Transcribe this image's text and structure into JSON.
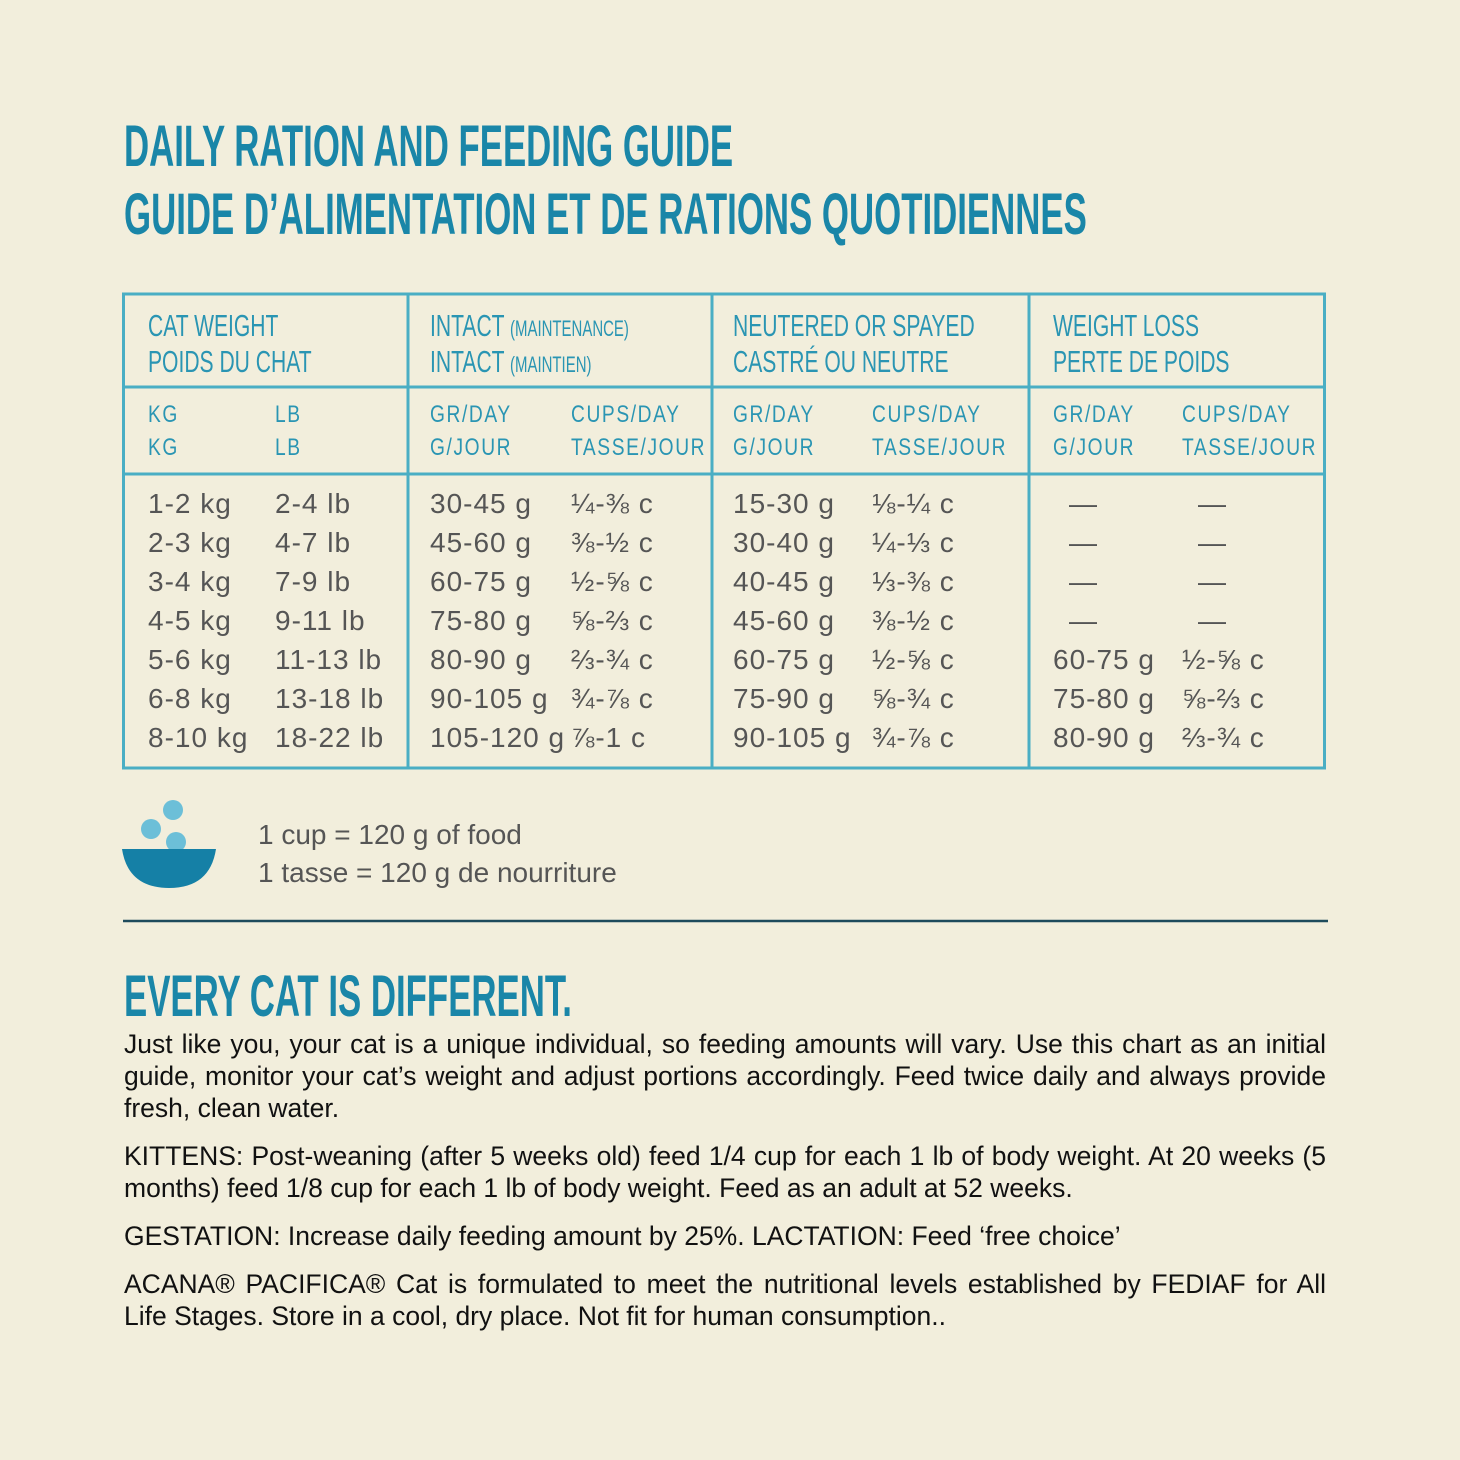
{
  "header": {
    "title_en": "DAILY RATION AND FEEDING GUIDE",
    "title_fr": "GUIDE D’ALIMENTATION ET DE RATIONS QUOTIDIENNES"
  },
  "table": {
    "groups": [
      {
        "en": "CAT WEIGHT",
        "fr": "POIDS DU CHAT"
      },
      {
        "en": "INTACT",
        "en_note": "(MAINTENANCE)",
        "fr": "INTACT",
        "fr_note": "(MAINTIEN)"
      },
      {
        "en": "NEUTERED OR SPAYED",
        "fr": "CASTRÉ OU NEUTRE"
      },
      {
        "en": "WEIGHT LOSS",
        "fr": "PERTE DE POIDS"
      }
    ],
    "subheaders": [
      {
        "en": "KG",
        "fr": "KG"
      },
      {
        "en": "LB",
        "fr": "LB"
      },
      {
        "en": "GR/DAY",
        "fr": "G/JOUR"
      },
      {
        "en": "CUPS/DAY",
        "fr": "TASSE/JOUR"
      },
      {
        "en": "GR/DAY",
        "fr": "G/JOUR"
      },
      {
        "en": "CUPS/DAY",
        "fr": "TASSE/JOUR"
      },
      {
        "en": "GR/DAY",
        "fr": "G/JOUR"
      },
      {
        "en": "CUPS/DAY",
        "fr": "TASSE/JOUR"
      }
    ],
    "rows": [
      [
        "1-2 kg",
        "2-4 lb",
        "30-45 g",
        "¼-⅜ c",
        "15-30 g",
        "⅛-¼ c",
        "—",
        "—"
      ],
      [
        "2-3 kg",
        "4-7 lb",
        "45-60 g",
        "⅜-½ c",
        "30-40 g",
        "¼-⅓ c",
        "—",
        "—"
      ],
      [
        "3-4 kg",
        "7-9 lb",
        "60-75 g",
        "½-⅝ c",
        "40-45 g",
        "⅓-⅜ c",
        "—",
        "—"
      ],
      [
        "4-5 kg",
        "9-11 lb",
        "75-80 g",
        "⅝-⅔ c",
        "45-60 g",
        "⅜-½ c",
        "—",
        "—"
      ],
      [
        "5-6 kg",
        "11-13 lb",
        "80-90 g",
        "⅔-¾ c",
        "60-75 g",
        "½-⅝ c",
        "60-75 g",
        "½-⅝ c"
      ],
      [
        "6-8 kg",
        "13-18 lb",
        "90-105 g",
        "¾-⅞ c",
        "75-90 g",
        "⅝-¾ c",
        "75-80 g",
        "⅝-⅔ c"
      ],
      [
        "8-10 kg",
        "18-22 lb",
        "105-120 g",
        "⅞-1 c",
        "90-105 g",
        "¾-⅞ c",
        "80-90 g",
        "⅔-¾ c"
      ]
    ]
  },
  "note": {
    "en": "1 cup = 120 g of food",
    "fr": "1 tasse = 120 g de nourriture"
  },
  "section": {
    "heading": "EVERY CAT IS DIFFERENT.",
    "paragraphs": [
      "Just like you, your cat is a unique individual, so feeding amounts will vary. Use this chart as an initial guide, monitor your cat’s weight and adjust portions accordingly. Feed twice daily and always provide fresh, clean water.",
      "KITTENS: Post-weaning (after 5 weeks old) feed 1/4 cup for each 1 lb of body weight. At 20 weeks (5 months) feed 1/8 cup for each 1 lb of body weight. Feed as an adult at 52 weeks.",
      "GESTATION: Increase daily feeding amount by 25%. LACTATION: Feed ‘free choice’",
      "ACANA® PACIFICA® Cat is formulated to meet the nutritional levels established by FEDIAF for All Life Stages. Store in a cool, dry place. Not fit for human consumption.."
    ]
  }
}
